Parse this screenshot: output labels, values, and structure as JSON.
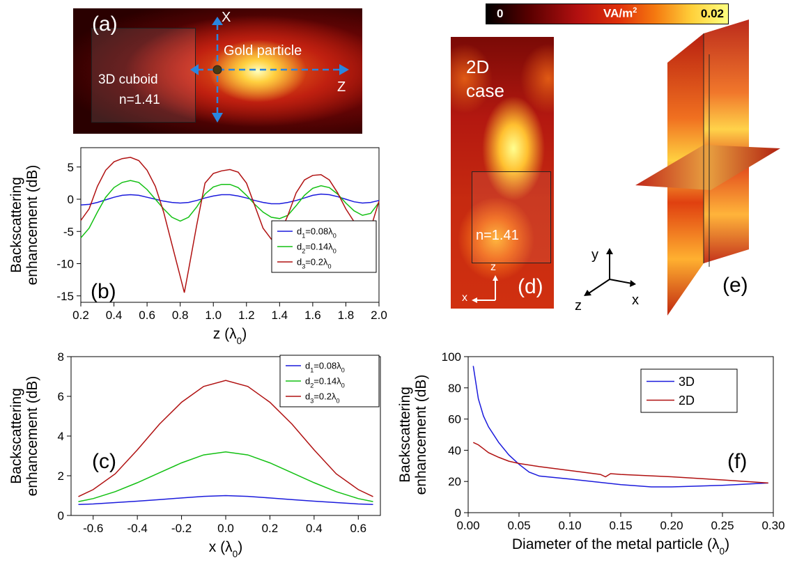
{
  "colorbar": {
    "min": "0",
    "unit_main": "VA/m",
    "unit_sup": "2",
    "max": "0.02",
    "colors": [
      "#000000",
      "#5a0000",
      "#b31010",
      "#e0300a",
      "#f57a10",
      "#ffd03a",
      "#ffff80"
    ]
  },
  "panel_a": {
    "label": "(a)",
    "axis_x": "X",
    "axis_z": "Z",
    "particle_label": "Gold particle",
    "cuboid_line1": "3D cuboid",
    "cuboid_line2": "n=1.41"
  },
  "panel_d": {
    "line1": "2D",
    "line2": "case",
    "n_label": "n=1.41",
    "label": "(d)",
    "ax_z": "z",
    "ax_x": "x"
  },
  "panel_e": {
    "label": "(e)"
  },
  "axes3d": {
    "y": "y",
    "z": "z",
    "x": "x"
  },
  "chart_data": [
    {
      "id": "b",
      "type": "line",
      "panel_label": "(b)",
      "xlabel": "z",
      "xlabel_unit": "λ",
      "xlabel_sub": "0",
      "ylabel_line1": "Backscattering",
      "ylabel_line2": "enhancement (dB)",
      "xlim": [
        0.2,
        2.0
      ],
      "ylim": [
        -16,
        8
      ],
      "xticks": [
        "0.2",
        "0.4",
        "0.6",
        "0.8",
        "1.0",
        "1.2",
        "1.4",
        "1.6",
        "1.8",
        "2.0"
      ],
      "yticks": [
        "5",
        "0",
        "-5",
        "-10",
        "-15"
      ],
      "legend": "lower-right",
      "series": [
        {
          "name": "d",
          "sub": "1",
          "rest": "=0.08λ",
          "sub2": "0",
          "color": "#1a1adc",
          "x": [
            0.2,
            0.25,
            0.3,
            0.35,
            0.4,
            0.45,
            0.5,
            0.55,
            0.6,
            0.65,
            0.7,
            0.75,
            0.8,
            0.85,
            0.9,
            0.95,
            1.0,
            1.05,
            1.1,
            1.15,
            1.2,
            1.25,
            1.3,
            1.35,
            1.4,
            1.45,
            1.5,
            1.55,
            1.6,
            1.65,
            1.7,
            1.75,
            1.8,
            1.85,
            1.9,
            1.95,
            2.0
          ],
          "y": [
            -0.9,
            -0.8,
            -0.5,
            -0.1,
            0.3,
            0.6,
            0.7,
            0.6,
            0.3,
            0,
            -0.3,
            -0.5,
            -0.6,
            -0.5,
            -0.2,
            0.2,
            0.5,
            0.7,
            0.7,
            0.5,
            0.2,
            -0.2,
            -0.5,
            -0.7,
            -0.7,
            -0.5,
            -0.2,
            0.2,
            0.6,
            0.8,
            0.7,
            0.4,
            0,
            -0.4,
            -0.6,
            -0.5,
            -0.2
          ]
        },
        {
          "name": "d",
          "sub": "2",
          "rest": "=0.14λ",
          "sub2": "0",
          "color": "#12c012",
          "x": [
            0.2,
            0.25,
            0.3,
            0.35,
            0.4,
            0.45,
            0.5,
            0.55,
            0.6,
            0.65,
            0.7,
            0.75,
            0.8,
            0.85,
            0.9,
            0.95,
            1.0,
            1.05,
            1.1,
            1.15,
            1.2,
            1.25,
            1.3,
            1.35,
            1.4,
            1.45,
            1.5,
            1.55,
            1.6,
            1.65,
            1.7,
            1.75,
            1.8,
            1.85,
            1.9,
            1.95,
            2.0
          ],
          "y": [
            -6.0,
            -4.5,
            -2.0,
            0.3,
            1.8,
            2.6,
            2.9,
            2.6,
            1.5,
            0,
            -1.5,
            -2.8,
            -3.4,
            -2.8,
            -1.2,
            0.8,
            1.9,
            2.3,
            2.3,
            1.8,
            0.6,
            -0.8,
            -2.0,
            -2.8,
            -3.0,
            -2.5,
            -1.0,
            0.6,
            1.7,
            2.1,
            1.8,
            0.8,
            -0.6,
            -1.8,
            -2.5,
            -2.2,
            -0.5
          ]
        },
        {
          "name": "d",
          "sub": "3",
          "rest": "=0.2λ",
          "sub2": "0",
          "color": "#b01010",
          "x": [
            0.2,
            0.25,
            0.3,
            0.35,
            0.4,
            0.45,
            0.5,
            0.55,
            0.6,
            0.65,
            0.7,
            0.75,
            0.8,
            0.825,
            0.85,
            0.9,
            0.95,
            1.0,
            1.05,
            1.1,
            1.15,
            1.2,
            1.25,
            1.3,
            1.35,
            1.4,
            1.45,
            1.5,
            1.55,
            1.6,
            1.65,
            1.7,
            1.75,
            1.8,
            1.85,
            1.9,
            1.95,
            2.0
          ],
          "y": [
            -3.3,
            -1.5,
            2.0,
            4.5,
            5.8,
            6.3,
            6.5,
            6.0,
            4.5,
            2.0,
            -2.0,
            -7.0,
            -12.0,
            -14.5,
            -11.0,
            -4.0,
            2.5,
            4.0,
            4.4,
            4.6,
            4.2,
            2.5,
            -1.0,
            -4.5,
            -6.2,
            -5.5,
            -2.5,
            1.0,
            3.0,
            3.7,
            3.8,
            3.0,
            1.0,
            -1.5,
            -3.5,
            -5.8,
            -4.5,
            -0.3
          ]
        }
      ]
    },
    {
      "id": "c",
      "type": "line",
      "panel_label": "(c)",
      "xlabel": "x",
      "xlabel_unit": "λ",
      "xlabel_sub": "0",
      "ylabel_line1": "Backscattering",
      "ylabel_line2": "enhancement (dB)",
      "xlim": [
        -0.7,
        0.7
      ],
      "ylim": [
        0,
        8
      ],
      "xticks": [
        "-0.6",
        "-0.4",
        "-0.2",
        "0.0",
        "0.2",
        "0.4",
        "0.6"
      ],
      "yticks": [
        "0",
        "2",
        "4",
        "6",
        "8"
      ],
      "legend": "top-right",
      "series": [
        {
          "name": "d",
          "sub": "1",
          "rest": "=0.08λ",
          "sub2": "0",
          "color": "#1a1adc",
          "x": [
            -0.667,
            -0.6,
            -0.5,
            -0.4,
            -0.3,
            -0.2,
            -0.1,
            0,
            0.1,
            0.2,
            0.3,
            0.4,
            0.5,
            0.6,
            0.667
          ],
          "y": [
            0.55,
            0.58,
            0.65,
            0.72,
            0.8,
            0.88,
            0.96,
            1.0,
            0.96,
            0.88,
            0.8,
            0.72,
            0.65,
            0.58,
            0.55
          ]
        },
        {
          "name": "d",
          "sub": "2",
          "rest": "=0.14λ",
          "sub2": "0",
          "color": "#12c012",
          "x": [
            -0.667,
            -0.6,
            -0.5,
            -0.4,
            -0.3,
            -0.2,
            -0.1,
            0,
            0.1,
            0.2,
            0.3,
            0.4,
            0.5,
            0.6,
            0.667
          ],
          "y": [
            0.7,
            0.85,
            1.2,
            1.65,
            2.15,
            2.65,
            3.05,
            3.2,
            3.05,
            2.65,
            2.15,
            1.65,
            1.2,
            0.85,
            0.7
          ]
        },
        {
          "name": "d",
          "sub": "3",
          "rest": "=0.2λ",
          "sub2": "0",
          "color": "#b01010",
          "x": [
            -0.667,
            -0.6,
            -0.5,
            -0.4,
            -0.3,
            -0.2,
            -0.1,
            0,
            0.1,
            0.2,
            0.3,
            0.4,
            0.5,
            0.6,
            0.667
          ],
          "y": [
            0.95,
            1.3,
            2.1,
            3.3,
            4.6,
            5.7,
            6.5,
            6.8,
            6.5,
            5.7,
            4.6,
            3.3,
            2.1,
            1.3,
            0.95
          ]
        }
      ]
    },
    {
      "id": "f",
      "type": "line",
      "panel_label": "(f)",
      "xlabel": "Diameter of the metal particle",
      "xlabel_unit": "λ",
      "xlabel_sub": "0",
      "ylabel_line1": "Backscattering",
      "ylabel_line2": "enhancement (dB)",
      "xlim": [
        0,
        0.3
      ],
      "ylim": [
        0,
        100
      ],
      "xticks": [
        "0.00",
        "0.05",
        "0.10",
        "0.15",
        "0.20",
        "0.25",
        "0.30"
      ],
      "yticks": [
        "0",
        "20",
        "40",
        "60",
        "80",
        "100"
      ],
      "legend": "top-center",
      "series": [
        {
          "name": "3D",
          "color": "#1a1adc",
          "x": [
            0.005,
            0.01,
            0.015,
            0.02,
            0.03,
            0.04,
            0.05,
            0.06,
            0.07,
            0.1,
            0.15,
            0.18,
            0.2,
            0.25,
            0.295
          ],
          "y": [
            94,
            73,
            62,
            55,
            45,
            37,
            31,
            26,
            23.5,
            21.5,
            18,
            16.5,
            16.5,
            17.5,
            19
          ]
        },
        {
          "name": "2D",
          "color": "#b01010",
          "x": [
            0.005,
            0.01,
            0.015,
            0.02,
            0.03,
            0.04,
            0.05,
            0.07,
            0.1,
            0.13,
            0.135,
            0.14,
            0.15,
            0.2,
            0.25,
            0.295
          ],
          "y": [
            45,
            43.5,
            41,
            38.5,
            35.5,
            33,
            31.5,
            29.5,
            27,
            24.5,
            23,
            25,
            24.5,
            23,
            21,
            19
          ]
        }
      ]
    }
  ]
}
